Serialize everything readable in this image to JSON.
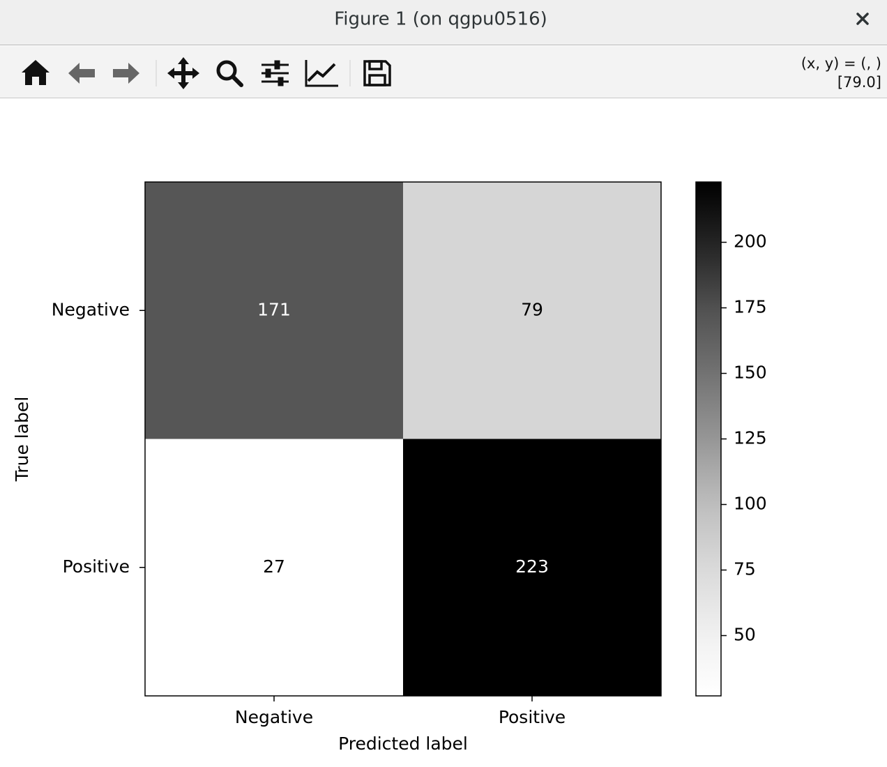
{
  "window": {
    "title": "Figure 1 (on qgpu0516)",
    "status": [
      "(x, y) = (, )",
      "[79.0]"
    ]
  },
  "chart_data": {
    "type": "heatmap",
    "x_label": "Predicted label",
    "y_label": "True label",
    "x_categories": [
      "Negative",
      "Positive"
    ],
    "y_categories": [
      "Negative",
      "Positive"
    ],
    "values": [
      [
        171,
        79
      ],
      [
        27,
        223
      ]
    ],
    "colormap": "Greys",
    "colorbar": {
      "lim": [
        27,
        223
      ],
      "ticks": [
        50,
        75,
        100,
        125,
        150,
        175,
        200
      ]
    }
  }
}
